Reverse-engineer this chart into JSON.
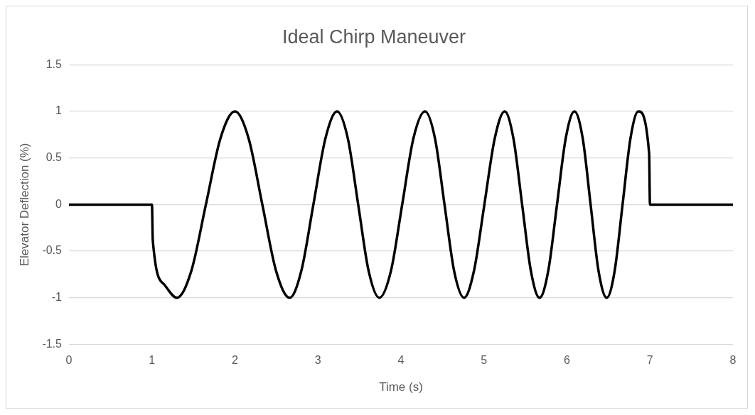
{
  "chart_data": {
    "type": "line",
    "title": "Ideal Chirp Maneuver",
    "xlabel": "Time (s)",
    "ylabel": "Elevator Deflection (%)",
    "x": [
      0,
      1,
      1.01,
      1.15,
      1.3,
      1.475,
      1.65,
      1.825,
      2,
      2.165,
      2.33,
      2.495,
      2.66,
      2.8,
      2.945,
      3.09,
      3.23,
      3.36,
      3.485,
      3.61,
      3.74,
      3.88,
      4.015,
      4.15,
      4.29,
      4.41,
      4.525,
      4.64,
      4.76,
      4.88,
      5.005,
      5.13,
      5.25,
      5.355,
      5.46,
      5.565,
      5.67,
      5.775,
      5.88,
      5.985,
      6.09,
      6.19,
      6.285,
      6.38,
      6.48,
      6.575,
      6.67,
      6.765,
      6.86,
      6.99,
      7,
      8
    ],
    "series": [
      {
        "color": "#000000",
        "values": [
          0,
          0,
          -0.38,
          -0.86,
          -1,
          -0.71,
          0,
          0.71,
          1,
          0.71,
          0,
          -0.71,
          -1,
          -0.71,
          0,
          0.71,
          1,
          0.71,
          0,
          -0.71,
          -1,
          -0.71,
          0,
          0.71,
          1,
          0.71,
          0,
          -0.71,
          -1,
          -0.71,
          0,
          0.71,
          1,
          0.71,
          0,
          -0.71,
          -1,
          -0.71,
          0,
          0.71,
          1,
          0.71,
          0,
          -0.71,
          -1,
          -0.71,
          0,
          0.71,
          1,
          0.55,
          0,
          0
        ]
      }
    ],
    "xlim": [
      0,
      8
    ],
    "xticks": [
      0,
      1,
      2,
      3,
      4,
      5,
      6,
      7,
      8
    ],
    "ylim": [
      -1.5,
      1.5
    ],
    "yticks": [
      -1.5,
      -1,
      -0.5,
      0,
      0.5,
      1,
      1.5
    ],
    "grid": "y",
    "legend": false,
    "marker": "none",
    "line_style": "solid"
  }
}
